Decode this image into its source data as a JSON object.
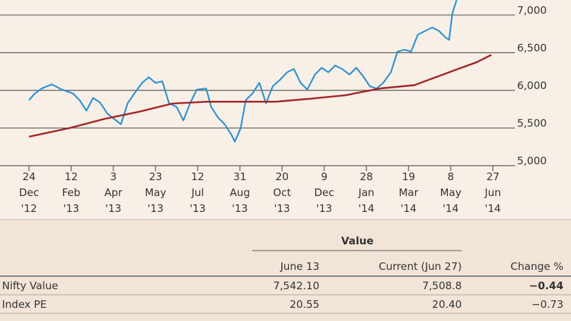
{
  "chart_data": {
    "type": "line",
    "series": [
      {
        "color": "#2b8fd0",
        "x": [
          "2012-12-24",
          "2012-12-31",
          "2013-01-08",
          "2013-01-20",
          "2013-02-01",
          "2013-02-14",
          "2013-02-22",
          "2013-03-02",
          "2013-03-10",
          "2013-03-18",
          "2013-03-27",
          "2013-04-04",
          "2013-04-12",
          "2013-04-20",
          "2013-04-28",
          "2013-05-07",
          "2013-05-15",
          "2013-05-23",
          "2013-05-31",
          "2013-06-08",
          "2013-06-17",
          "2013-06-25",
          "2013-07-03",
          "2013-07-11",
          "2013-07-22",
          "2013-07-28",
          "2013-08-05",
          "2013-08-13",
          "2013-08-21",
          "2013-08-25",
          "2013-09-01",
          "2013-09-07",
          "2013-09-15",
          "2013-09-23",
          "2013-10-01",
          "2013-10-09",
          "2013-10-18",
          "2013-10-26",
          "2013-11-03",
          "2013-11-11",
          "2013-11-19",
          "2013-11-28",
          "2013-12-06",
          "2013-12-14",
          "2013-12-22",
          "2013-12-30",
          "2014-01-08",
          "2014-01-16",
          "2014-01-24",
          "2014-02-01",
          "2014-02-09",
          "2014-02-17",
          "2014-02-26",
          "2014-03-06",
          "2014-03-14",
          "2014-03-22",
          "2014-03-30",
          "2014-04-08",
          "2014-04-16",
          "2014-04-24",
          "2014-05-02",
          "2014-05-06",
          "2014-05-10",
          "2014-05-15"
        ],
        "values": [
          5870,
          5960,
          6025,
          6080,
          6010,
          5960,
          5870,
          5730,
          5900,
          5840,
          5690,
          5620,
          5550,
          5830,
          5960,
          6100,
          6175,
          6100,
          6120,
          5830,
          5780,
          5600,
          5830,
          6010,
          6025,
          5780,
          5640,
          5550,
          5410,
          5320,
          5500,
          5870,
          5960,
          6100,
          5830,
          6055,
          6145,
          6240,
          6285,
          6100,
          6010,
          6210,
          6300,
          6240,
          6330,
          6285,
          6210,
          6300,
          6190,
          6055,
          6025,
          6100,
          6240,
          6515,
          6540,
          6515,
          6740,
          6790,
          6835,
          6790,
          6700,
          6670,
          7020,
          7200
        ]
      },
      {
        "color": "#a3262a",
        "x": [
          "2012-12-24",
          "2013-02-10",
          "2013-03-23",
          "2013-05-03",
          "2013-06-12",
          "2013-07-23",
          "2013-09-02",
          "2013-10-13",
          "2013-11-23",
          "2014-01-03",
          "2014-02-13",
          "2014-03-26",
          "2014-05-06",
          "2014-06-08",
          "2014-06-25"
        ],
        "values": [
          5385,
          5500,
          5620,
          5715,
          5825,
          5850,
          5850,
          5850,
          5890,
          5935,
          6025,
          6070,
          6240,
          6375,
          6470
        ]
      }
    ],
    "xlim": [
      "2012-12-24",
      "2014-06-27"
    ],
    "xticks": [
      {
        "value": "2012-12-24",
        "label": [
          "24",
          "Dec",
          "'12"
        ]
      },
      {
        "value": "2013-02-12",
        "label": [
          "12",
          "Feb",
          "'13"
        ]
      },
      {
        "value": "2013-04-03",
        "label": [
          "3",
          "Apr",
          "'13"
        ]
      },
      {
        "value": "2013-05-23",
        "label": [
          "23",
          "May",
          "'13"
        ]
      },
      {
        "value": "2013-07-12",
        "label": [
          "12",
          "Jul",
          "'13"
        ]
      },
      {
        "value": "2013-08-31",
        "label": [
          "31",
          "Aug",
          "'13"
        ]
      },
      {
        "value": "2013-10-20",
        "label": [
          "20",
          "Oct",
          "'13"
        ]
      },
      {
        "value": "2013-12-09",
        "label": [
          "9",
          "Dec",
          "'13"
        ]
      },
      {
        "value": "2014-01-28",
        "label": [
          "28",
          "Jan",
          "'14"
        ]
      },
      {
        "value": "2014-03-19",
        "label": [
          "19",
          "Mar",
          "'14"
        ]
      },
      {
        "value": "2014-05-08",
        "label": [
          "8",
          "May",
          "'14"
        ]
      },
      {
        "value": "2014-06-27",
        "label": [
          "27",
          "Jun",
          "'14"
        ]
      }
    ],
    "ylim": [
      5000,
      7200
    ],
    "yticks": [
      {
        "value": 5000,
        "label": "5,000"
      },
      {
        "value": 5500,
        "label": "5,500"
      },
      {
        "value": 6000,
        "label": "6,000"
      },
      {
        "value": 6500,
        "label": "6,500"
      },
      {
        "value": 7000,
        "label": "7,000"
      }
    ],
    "grid": true
  },
  "table": {
    "group_header": "Value",
    "columns": [
      "June 13",
      "Current (Jun 27)",
      "Change %"
    ],
    "rows": [
      [
        "Nifty Value",
        "7,542.10",
        "7,508.8",
        "−0.44"
      ],
      [
        "Index PE",
        "20.55",
        "20.40",
        "−0.73"
      ]
    ]
  }
}
